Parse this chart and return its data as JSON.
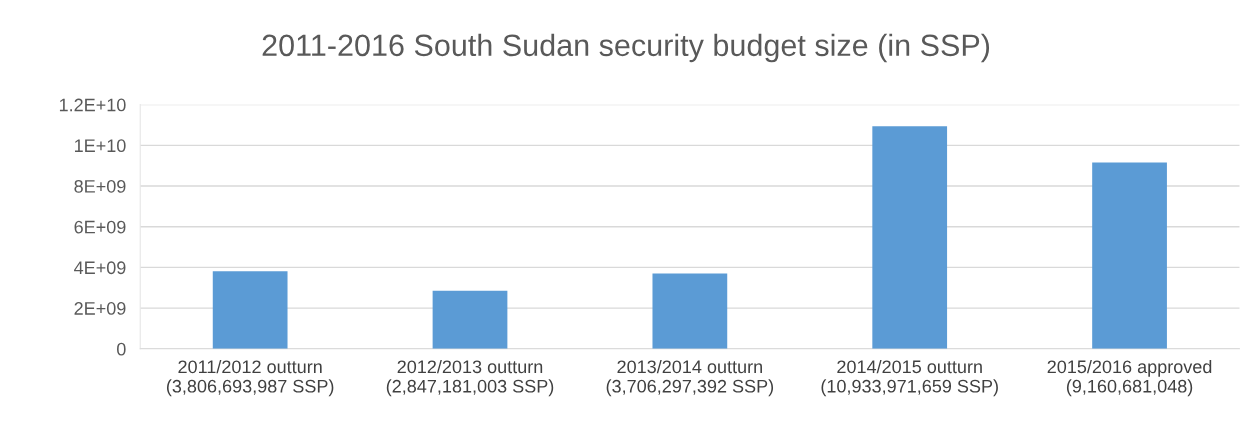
{
  "chart_data": {
    "type": "bar",
    "title": "2011-2016 South Sudan security budget size (in SSP)",
    "categories": [
      "2011/2012 outturn\n(3,806,693,987 SSP)",
      "2012/2013 outturn\n(2,847,181,003 SSP)",
      "2013/2014 outturn\n(3,706,297,392 SSP)",
      "2014/2015 outturn\n(10,933,971,659 SSP)",
      "2015/2016 approved\n(9,160,681,048)"
    ],
    "values": [
      3806693987,
      2847181003,
      3706297392,
      10933971659,
      9160681048
    ],
    "color": "#5b9bd5",
    "ylim": [
      0,
      12000000000
    ],
    "yticks": [
      0,
      {
        "value": 2000000000,
        "label": "2E+09"
      },
      {
        "value": 4000000000,
        "label": "4E+09"
      },
      {
        "value": 6000000000,
        "label": "6E+09"
      },
      {
        "value": 8000000000,
        "label": "8E+09"
      },
      {
        "value": 10000000000,
        "label": "1E+10"
      },
      {
        "value": 12000000000,
        "label": "1.2E+10"
      }
    ],
    "grid": "y"
  }
}
